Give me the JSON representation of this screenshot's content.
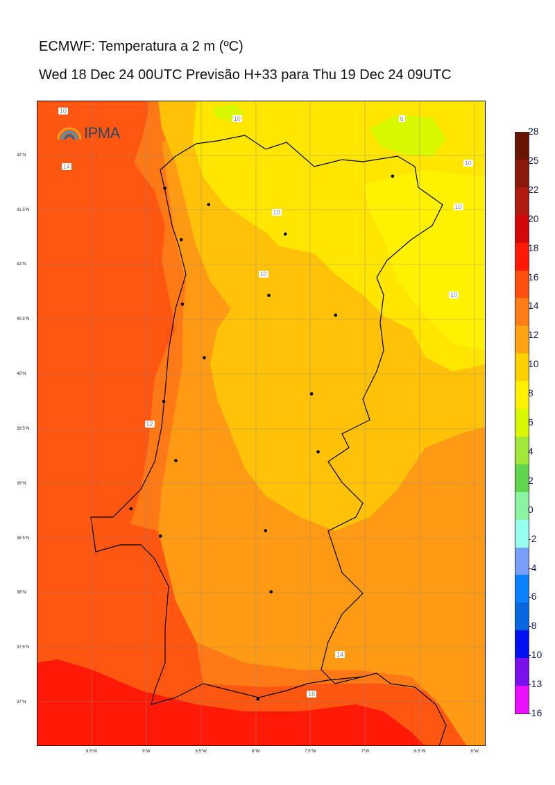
{
  "header": {
    "title": "ECMWF: Temperatura a 2 m (ºC)",
    "subtitle": "Wed 18 Dec 24 00UTC Previsão H+33 para Thu 19 Dec 24 09UTC"
  },
  "logo": {
    "text": "IPMA",
    "icon": "ipma-arcs-icon"
  },
  "map": {
    "lon_range": [
      -10.0,
      -5.9
    ],
    "lat_range": [
      36.6,
      42.5
    ],
    "lon_ticks": [
      "9.5°W",
      "9°W",
      "8.5°W",
      "8°W",
      "7.5°W",
      "7°W",
      "6.5°W",
      "6°W"
    ],
    "lon_tick_values": [
      -9.5,
      -9.0,
      -8.5,
      -8.0,
      -7.5,
      -7.0,
      -6.5,
      -6.0
    ],
    "lat_ticks": [
      "42°N",
      "41.5°N",
      "41°N",
      "40.5°N",
      "40°N",
      "39.5°N",
      "39°N",
      "38.5°N",
      "38°N",
      "37.5°N",
      "37°N"
    ],
    "lat_tick_values": [
      42.0,
      41.5,
      41.0,
      40.5,
      40.0,
      39.5,
      39.0,
      38.5,
      38.0,
      37.5,
      37.0
    ],
    "contour_labels": [
      {
        "text": "10",
        "lon": -9.76,
        "lat": 42.4
      },
      {
        "text": "10",
        "lon": -8.17,
        "lat": 42.33
      },
      {
        "text": "6",
        "lon": -6.65,
        "lat": 42.33
      },
      {
        "text": "14",
        "lon": -9.73,
        "lat": 41.89
      },
      {
        "text": "10",
        "lon": -6.06,
        "lat": 41.92
      },
      {
        "text": "10",
        "lon": -6.15,
        "lat": 41.52
      },
      {
        "text": "10",
        "lon": -7.81,
        "lat": 41.47
      },
      {
        "text": "10",
        "lon": -7.93,
        "lat": 40.91
      },
      {
        "text": "10",
        "lon": -6.19,
        "lat": 40.72
      },
      {
        "text": "12",
        "lon": -8.97,
        "lat": 39.54
      },
      {
        "text": "14",
        "lon": -7.23,
        "lat": 37.43
      },
      {
        "text": "16",
        "lon": -7.49,
        "lat": 37.07
      }
    ],
    "cities": [
      {
        "lon": -6.75,
        "lat": 41.81
      },
      {
        "lon": -8.43,
        "lat": 41.55
      },
      {
        "lon": -8.83,
        "lat": 41.7
      },
      {
        "lon": -8.68,
        "lat": 41.23
      },
      {
        "lon": -7.73,
        "lat": 41.28
      },
      {
        "lon": -8.67,
        "lat": 40.64
      },
      {
        "lon": -7.88,
        "lat": 40.72
      },
      {
        "lon": -7.27,
        "lat": 40.54
      },
      {
        "lon": -8.47,
        "lat": 40.15
      },
      {
        "lon": -7.49,
        "lat": 39.82
      },
      {
        "lon": -8.84,
        "lat": 39.75
      },
      {
        "lon": -7.43,
        "lat": 39.29
      },
      {
        "lon": -8.73,
        "lat": 39.21
      },
      {
        "lon": -9.14,
        "lat": 38.77
      },
      {
        "lon": -8.87,
        "lat": 38.52
      },
      {
        "lon": -7.91,
        "lat": 38.57
      },
      {
        "lon": -7.86,
        "lat": 38.01
      },
      {
        "lon": -7.98,
        "lat": 37.03
      }
    ]
  },
  "colorbar": {
    "labels": [
      "28",
      "25",
      "22",
      "20",
      "18",
      "16",
      "14",
      "12",
      "10",
      "8",
      "6",
      "4",
      "2",
      "0",
      "-2",
      "-4",
      "-6",
      "-8",
      "-10",
      "-13",
      "-16"
    ],
    "colors": [
      "#6a1404",
      "#8c1a0a",
      "#b01a10",
      "#d30808",
      "#ff1a08",
      "#ff5010",
      "#ff7c16",
      "#ffa312",
      "#ffd000",
      "#fff200",
      "#d8f800",
      "#a2e83a",
      "#60d650",
      "#8cf4a0",
      "#98fff0",
      "#78a0f8",
      "#0a82ff",
      "#0868e0",
      "#0010ee",
      "#7a10ee",
      "#e810ff"
    ]
  }
}
